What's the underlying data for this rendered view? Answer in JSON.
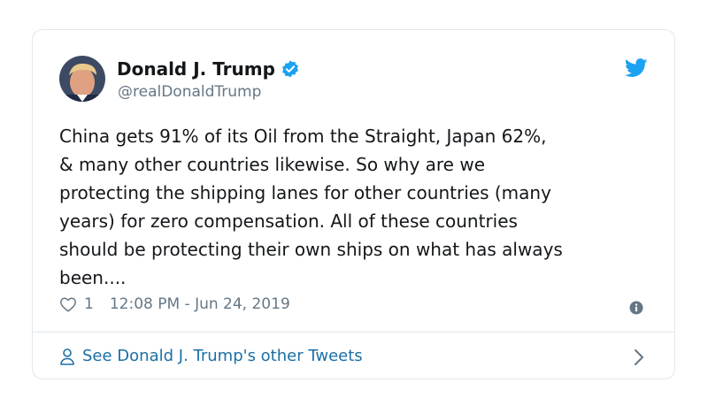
{
  "tweet": {
    "author_name": "Donald J. Trump",
    "handle": "@realDonaldTrump",
    "text": "China gets 91% of its Oil from the Straight, Japan 62%,\n& many other countries likewise. So why are we\nprotecting the shipping lanes for other countries (many\nyears) for zero compensation. All of these countries\nshould be protecting their own ships on what has always\nbeen....",
    "likes": "1",
    "timestamp": "12:08 PM - Jun 24, 2019"
  },
  "footer": {
    "link_label": "See Donald J. Trump's other Tweets"
  },
  "icons": {
    "verified": "verified-badge-icon",
    "brand": "twitter-bird-icon",
    "like": "heart-icon",
    "info": "info-icon",
    "profile": "person-icon",
    "chevron": "chevron-right-icon"
  },
  "colors": {
    "brand_blue": "#1da1f2",
    "link_blue": "#1b6fa5",
    "secondary_text": "#657786",
    "border": "#e1e8ed"
  }
}
